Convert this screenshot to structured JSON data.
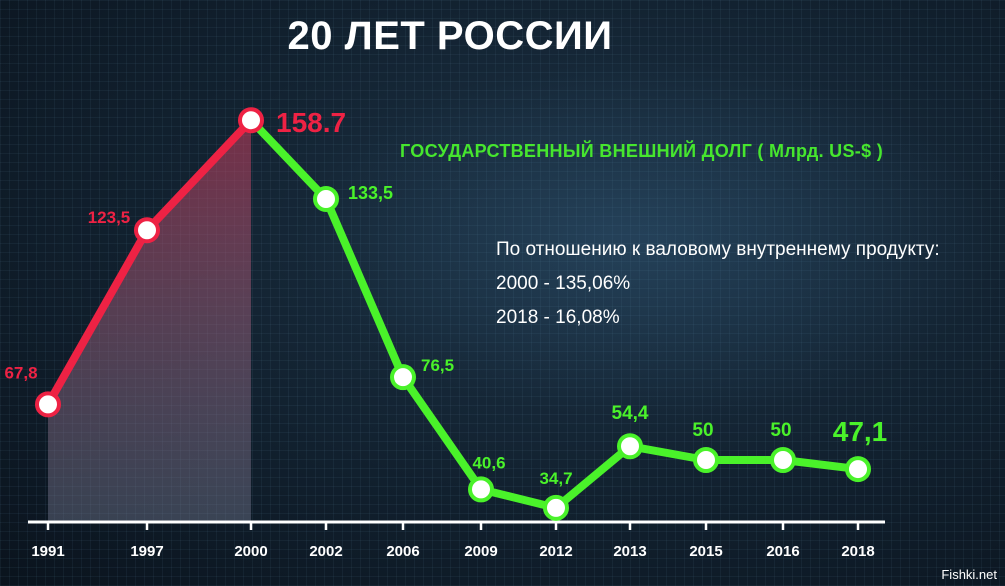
{
  "title": "20 ЛЕТ РОССИИ",
  "subtitle": "ГОСУДАРСТВЕННЫЙ ВНЕШНИЙ ДОЛГ ( Млрд. US-$ )",
  "ratio": {
    "heading": "По отношению к валовому внутреннему продукту:",
    "line1": "2000 - 135,06%",
    "line2": "2018 - 16,08%"
  },
  "watermark": "Fishki.net",
  "colors": {
    "rising": "#ee2244",
    "falling": "#4af22a",
    "point_fill": "#ffffff"
  },
  "chart_data": {
    "type": "line",
    "title": "20 ЛЕТ РОССИИ",
    "ylabel": "ГОСУДАРСТВЕННЫЙ ВНЕШНИЙ ДОЛГ ( Млрд. US-$ )",
    "categories": [
      "1991",
      "1997",
      "2000",
      "2002",
      "2006",
      "2009",
      "2012",
      "2013",
      "2015",
      "2016",
      "2018"
    ],
    "values": [
      67.8,
      123.5,
      158.7,
      133.5,
      76.5,
      40.6,
      34.7,
      54.4,
      50,
      50,
      47.1
    ],
    "labels": [
      "67,8",
      "123,5",
      "158.7",
      "133,5",
      "76,5",
      "40,6",
      "34,7",
      "54,4",
      "50",
      "50",
      "47,1"
    ],
    "peak_index": 2,
    "grid": false,
    "legend": "none"
  }
}
